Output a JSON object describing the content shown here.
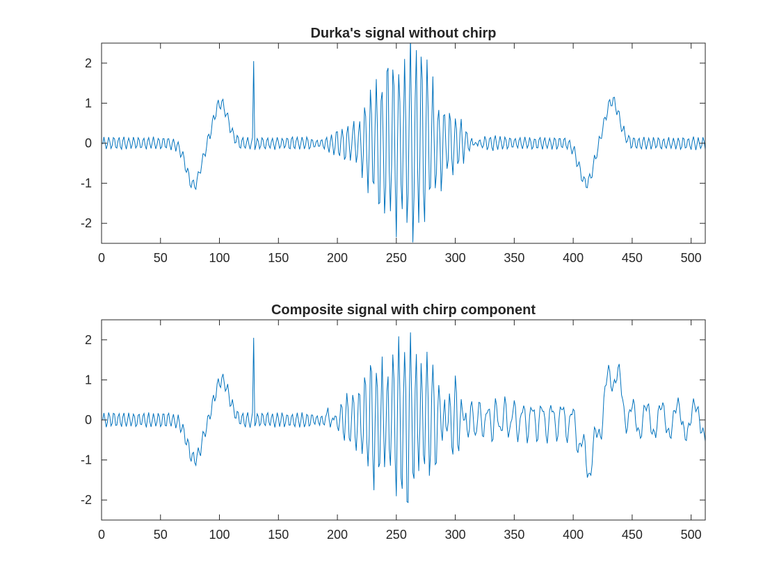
{
  "figure": {
    "background": "#ffffff",
    "axes_color": "#262626",
    "line_color": "#0072bd"
  },
  "chart_data": [
    {
      "type": "line",
      "title": "Durka's signal without chirp",
      "xlabel": "",
      "ylabel": "",
      "xlim": [
        0,
        512
      ],
      "ylim": [
        -2.5,
        2.5
      ],
      "xticks": [
        0,
        50,
        100,
        150,
        200,
        250,
        300,
        350,
        400,
        450,
        500
      ],
      "xtick_labels": [
        "0",
        "50",
        "100",
        "150",
        "200",
        "250",
        "300",
        "350",
        "400",
        "450",
        "500"
      ],
      "yticks": [
        2,
        1,
        0,
        -1,
        -2
      ],
      "ytick_labels": [
        "2",
        "1",
        "0",
        "-1",
        "-2"
      ],
      "grid": false,
      "series": [
        {
          "color": "#0072bd",
          "components": {
            "background_sine": {
              "amplitude": 0.15,
              "period": 4.2
            },
            "gaussian_bumps": [
              {
                "center": 77,
                "amplitude": -1.05,
                "width": 6
              },
              {
                "center": 100,
                "amplitude": 1.0,
                "width": 6
              },
              {
                "center": 410,
                "amplitude": -1.0,
                "width": 6
              },
              {
                "center": 432,
                "amplitude": 1.05,
                "width": 6
              }
            ],
            "spike": {
              "x": 128,
              "y": 2.05
            },
            "burst": {
              "center": 256,
              "amplitude": 2.2,
              "width": 26,
              "period": 4.8
            }
          }
        }
      ]
    },
    {
      "type": "line",
      "title": "Composite signal with chirp component",
      "xlabel": "",
      "ylabel": "",
      "xlim": [
        0,
        512
      ],
      "ylim": [
        -2.5,
        2.5
      ],
      "xticks": [
        0,
        50,
        100,
        150,
        200,
        250,
        300,
        350,
        400,
        450,
        500
      ],
      "xtick_labels": [
        "0",
        "50",
        "100",
        "150",
        "200",
        "250",
        "300",
        "350",
        "400",
        "450",
        "500"
      ],
      "yticks": [
        2,
        1,
        0,
        -1,
        -2
      ],
      "ytick_labels": [
        "2",
        "1",
        "0",
        "-1",
        "-2"
      ],
      "grid": false,
      "series": [
        {
          "color": "#0072bd",
          "components": {
            "background_sine": {
              "amplitude": 0.18,
              "period": 4.2
            },
            "gaussian_bumps": [
              {
                "center": 78,
                "amplitude": -1.0,
                "width": 6
              },
              {
                "center": 101,
                "amplitude": 1.0,
                "width": 6
              },
              {
                "center": 412,
                "amplitude": -1.1,
                "width": 6
              },
              {
                "center": 433,
                "amplitude": 1.2,
                "width": 6
              }
            ],
            "spike": {
              "x": 128,
              "y": 2.05
            },
            "burst": {
              "center": 256,
              "amplitude": 1.85,
              "width": 28,
              "period": 4.8
            },
            "chirp": {
              "start": 190,
              "end": 512,
              "amplitude": 0.4,
              "freq_start": 0.2,
              "freq_end": 0.06
            }
          }
        }
      ]
    }
  ]
}
